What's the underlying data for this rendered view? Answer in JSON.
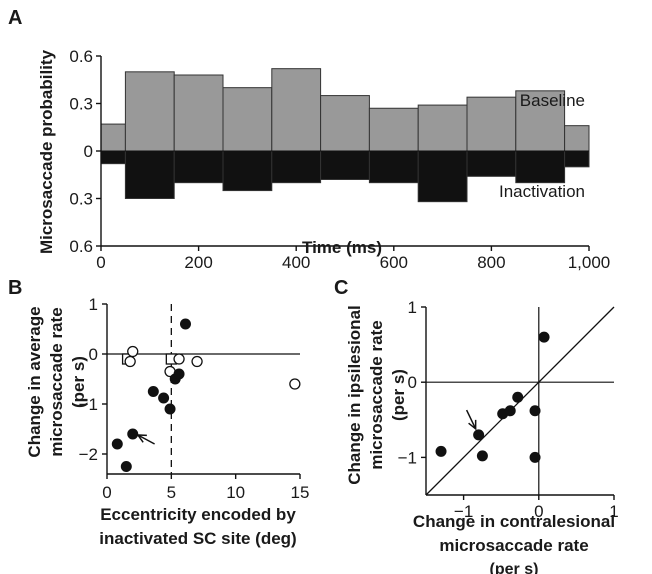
{
  "chart_data": [
    {
      "panel": "A",
      "type": "bar",
      "title": "",
      "xlabel": "Time (ms)",
      "ylabel": "Microsaccade probability",
      "xlim": [
        0,
        1000
      ],
      "ylim_top": [
        0,
        0.6
      ],
      "ylim_bottom": [
        0,
        0.6
      ],
      "xticks": [
        0,
        200,
        400,
        600,
        800,
        1000
      ],
      "xtick_labels": [
        "0",
        "200",
        "400",
        "600",
        "800",
        "1,000"
      ],
      "yticks_top": [
        0.6,
        0.3,
        0
      ],
      "ytick_labels_top": [
        "0.6",
        "0.3",
        "0"
      ],
      "yticks_bottom": [
        0.3,
        0.6
      ],
      "ytick_labels_bottom": [
        "0.3",
        "0.6"
      ],
      "bin_edges": [
        0,
        50,
        150,
        250,
        350,
        450,
        550,
        650,
        750,
        850,
        950,
        1000
      ],
      "series": [
        {
          "name": "Baseline",
          "color": "#999999",
          "direction": "up",
          "values": [
            0.17,
            0.5,
            0.48,
            0.4,
            0.52,
            0.35,
            0.27,
            0.29,
            0.34,
            0.38,
            0.16
          ]
        },
        {
          "name": "Inactivation",
          "color": "#111111",
          "direction": "down",
          "values": [
            0.08,
            0.3,
            0.2,
            0.25,
            0.2,
            0.18,
            0.2,
            0.32,
            0.16,
            0.2,
            0.1
          ]
        }
      ]
    },
    {
      "panel": "B",
      "type": "scatter",
      "title": "",
      "xlabel": [
        "Eccentricity encoded by",
        "inactivated SC site (deg)"
      ],
      "ylabel": [
        "Change in average",
        "microsaccade rate",
        "(per s)"
      ],
      "xlim": [
        0,
        15
      ],
      "ylim": [
        -2.4,
        1
      ],
      "xticks": [
        0,
        5,
        10,
        15
      ],
      "yticks": [
        1,
        0,
        -1,
        -2
      ],
      "ytick_labels": [
        "1",
        "0",
        "−1",
        "−2"
      ],
      "vline": 5,
      "hline": 0,
      "arrow": {
        "from": [
          3.7,
          -1.8
        ],
        "to": [
          2.4,
          -1.62
        ]
      },
      "filled_points": [
        [
          0.8,
          -1.8
        ],
        [
          1.5,
          -2.25
        ],
        [
          2.0,
          -1.6
        ],
        [
          3.6,
          -0.75
        ],
        [
          4.4,
          -0.88
        ],
        [
          4.9,
          -1.1
        ],
        [
          5.3,
          -0.5
        ],
        [
          5.6,
          -0.4
        ],
        [
          6.1,
          0.6
        ]
      ],
      "open_points": [
        [
          1.8,
          -0.15
        ],
        [
          2.0,
          0.05
        ],
        [
          4.9,
          -0.35
        ],
        [
          5.6,
          -0.1
        ],
        [
          7.0,
          -0.15
        ],
        [
          14.6,
          -0.6
        ]
      ],
      "square_points": [
        [
          1.6,
          -0.1
        ],
        [
          5.0,
          -0.1
        ]
      ]
    },
    {
      "panel": "C",
      "type": "scatter",
      "title": "",
      "xlabel": [
        "Change in contralesional",
        "microsaccade rate",
        "(per s)"
      ],
      "ylabel": [
        "Change in ipsilesional",
        "microsaccade rate",
        "(per s)"
      ],
      "xlim": [
        -1.5,
        1
      ],
      "ylim": [
        -1.5,
        1
      ],
      "xticks": [
        -1,
        0,
        1
      ],
      "xtick_labels": [
        "−1",
        "0",
        "1"
      ],
      "yticks": [
        1,
        0,
        -1
      ],
      "ytick_labels": [
        "1",
        "0",
        "−1"
      ],
      "diagonal": true,
      "hline": 0,
      "vline": 0,
      "arrow": {
        "from": [
          -0.96,
          -0.37
        ],
        "to": [
          -0.84,
          -0.62
        ]
      },
      "filled_points": [
        [
          -1.3,
          -0.92
        ],
        [
          -0.8,
          -0.7
        ],
        [
          -0.75,
          -0.98
        ],
        [
          -0.48,
          -0.42
        ],
        [
          -0.38,
          -0.38
        ],
        [
          -0.28,
          -0.2
        ],
        [
          -0.05,
          -0.38
        ],
        [
          -0.05,
          -1.0
        ],
        [
          0.07,
          0.6
        ]
      ]
    }
  ],
  "panel_labels": {
    "a": "A",
    "b": "B",
    "c": "C"
  }
}
